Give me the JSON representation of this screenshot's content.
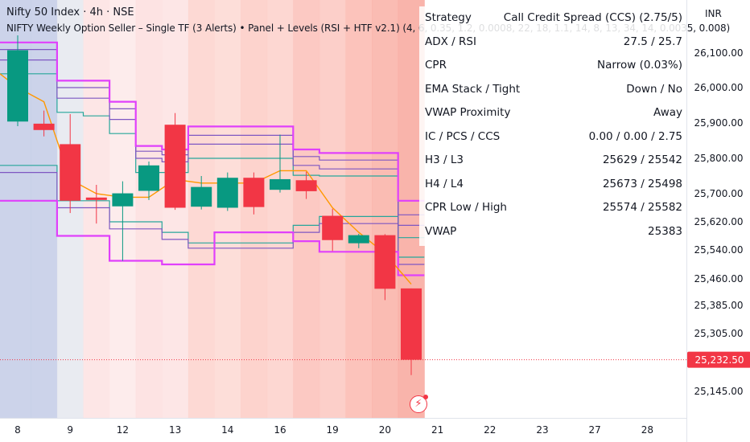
{
  "header": {
    "symbol_title": "Nifty 50 Index · 4h · NSE",
    "indicator_title": "NIFTY Weekly Option Seller – Single TF (3 Alerts) • Panel + Levels (RSI + HTF v2.1) (4, 6, 0.35, 1.2, 0.0008, 22, 18, 1.1, 14, 8, 13, 34, 14, 0.0035, 0.008)"
  },
  "currency": "INR",
  "panel": {
    "rows": [
      {
        "label": "Strategy",
        "value": "Call Credit Spread (CCS) (2.75/5)"
      },
      {
        "label": "ADX / RSI",
        "value": "27.5 / 25.7"
      },
      {
        "label": "CPR",
        "value": "Narrow (0.03%)"
      },
      {
        "label": "EMA Stack / Tight",
        "value": "Down / No"
      },
      {
        "label": "VWAP Proximity",
        "value": "Away"
      },
      {
        "label": "IC / PCS / CCS",
        "value": "0.00 / 0.00 / 2.75"
      },
      {
        "label": "H3 / L3",
        "value": "25629 / 25542"
      },
      {
        "label": "H4 / L4",
        "value": "25673 / 25498"
      },
      {
        "label": "CPR Low / High",
        "value": "25574 / 25582"
      },
      {
        "label": "VWAP",
        "value": "25383"
      }
    ]
  },
  "colors": {
    "up": "#089981",
    "down": "#f23645",
    "outer_band": "#e040fb",
    "inner_band": "#7e57c2",
    "mid_band": "#26a69a",
    "ema": "#ff9800",
    "price_label_bg": "#f23645"
  },
  "chart_data": {
    "type": "candlestick",
    "title": "Nifty 50 Index · 4h · NSE",
    "ylim": [
      25090,
      26200
    ],
    "y_ticks": [
      26100,
      26000,
      25900,
      25800,
      25700,
      25620,
      25540,
      25460,
      25385,
      25305,
      25145
    ],
    "y_tick_labels": [
      "26,100.00",
      "26,000.00",
      "25,900.00",
      "25,800.00",
      "25,700.00",
      "25,620.00",
      "25,540.00",
      "25,460.00",
      "25,385.00",
      "25,305.00",
      "25,145.00"
    ],
    "last_price": 25232.5,
    "last_price_label": "25,232.50",
    "x_tick_labels": [
      {
        "label": "8",
        "bar": 0
      },
      {
        "label": "9",
        "bar": 2
      },
      {
        "label": "12",
        "bar": 4
      },
      {
        "label": "13",
        "bar": 6
      },
      {
        "label": "14",
        "bar": 8
      },
      {
        "label": "16",
        "bar": 10
      },
      {
        "label": "19",
        "bar": 12
      },
      {
        "label": "20",
        "bar": 14
      },
      {
        "label": "21",
        "bar": 16
      },
      {
        "label": "22",
        "bar": 18
      },
      {
        "label": "23",
        "bar": 20
      },
      {
        "label": "27",
        "bar": 22
      },
      {
        "label": "28",
        "bar": 24
      }
    ],
    "candles": [
      {
        "o": 25904,
        "h": 26150,
        "l": 25891,
        "c": 26108
      },
      {
        "o": 25898,
        "h": 25935,
        "l": 25862,
        "c": 25880
      },
      {
        "o": 25840,
        "h": 25925,
        "l": 25645,
        "c": 25680
      },
      {
        "o": 25689,
        "h": 25725,
        "l": 25615,
        "c": 25682
      },
      {
        "o": 25664,
        "h": 25735,
        "l": 25510,
        "c": 25701
      },
      {
        "o": 25708,
        "h": 25791,
        "l": 25682,
        "c": 25780
      },
      {
        "o": 25895,
        "h": 25928,
        "l": 25654,
        "c": 25660
      },
      {
        "o": 25663,
        "h": 25750,
        "l": 25655,
        "c": 25719
      },
      {
        "o": 25660,
        "h": 25760,
        "l": 25651,
        "c": 25745
      },
      {
        "o": 25745,
        "h": 25760,
        "l": 25641,
        "c": 25662
      },
      {
        "o": 25711,
        "h": 25867,
        "l": 25703,
        "c": 25741
      },
      {
        "o": 25738,
        "h": 25762,
        "l": 25685,
        "c": 25707
      },
      {
        "o": 25637,
        "h": 25657,
        "l": 25537,
        "c": 25568
      },
      {
        "o": 25559,
        "h": 25586,
        "l": 25545,
        "c": 25582
      },
      {
        "o": 25582,
        "h": 25585,
        "l": 25400,
        "c": 25432
      },
      {
        "o": 25433,
        "h": 25433,
        "l": 25190,
        "c": 25232.5
      }
    ],
    "bands": {
      "outer_upper": [
        26130,
        26130,
        26020,
        26020,
        25960,
        25835,
        25825,
        25890,
        25890,
        25890,
        25890,
        25825,
        25815,
        25815,
        25815,
        25680
      ],
      "inner_upper": [
        26110,
        26110,
        26000,
        26000,
        25940,
        25820,
        25810,
        25865,
        25865,
        25865,
        25865,
        25805,
        25795,
        25795,
        25795,
        25640
      ],
      "inner_upper2": [
        26080,
        26080,
        25970,
        25970,
        25910,
        25800,
        25790,
        25840,
        25840,
        25840,
        25840,
        25780,
        25770,
        25770,
        25770,
        25610
      ],
      "mid_upper": [
        26040,
        26040,
        25930,
        25920,
        25870,
        25760,
        25760,
        25800,
        25800,
        25800,
        25800,
        25752,
        25750,
        25750,
        25750,
        25575
      ],
      "mid_lower": [
        25780,
        25780,
        25680,
        25680,
        25620,
        25620,
        25590,
        25560,
        25560,
        25560,
        25560,
        25610,
        25635,
        25635,
        25635,
        25520
      ],
      "inner_lower": [
        25760,
        25760,
        25660,
        25660,
        25600,
        25600,
        25570,
        25545,
        25545,
        25545,
        25545,
        25590,
        25615,
        25615,
        25615,
        25500
      ],
      "outer_lower": [
        25680,
        25680,
        25580,
        25580,
        25510,
        25510,
        25500,
        25500,
        25590,
        25590,
        25590,
        25565,
        25535,
        25535,
        25535,
        25470
      ]
    },
    "ema": [
      26000,
      25960,
      25740,
      25700,
      25690,
      25690,
      25740,
      25730,
      25730,
      25730,
      25765,
      25765,
      25660,
      25590,
      25530,
      25445
    ],
    "background_shading": [
      "#c3cbe6",
      "#c3cbe6",
      "#e5e7ef",
      "#fde2e2",
      "#fde9e9",
      "#fddede",
      "#fde2e2",
      "#fdd2cc",
      "#fdd8d2",
      "#fdcbc4",
      "#fdd0ca",
      "#fbc0b8",
      "#fcc7c0",
      "#fbb8af",
      "#f9b0a6",
      "#f8a79c"
    ]
  }
}
